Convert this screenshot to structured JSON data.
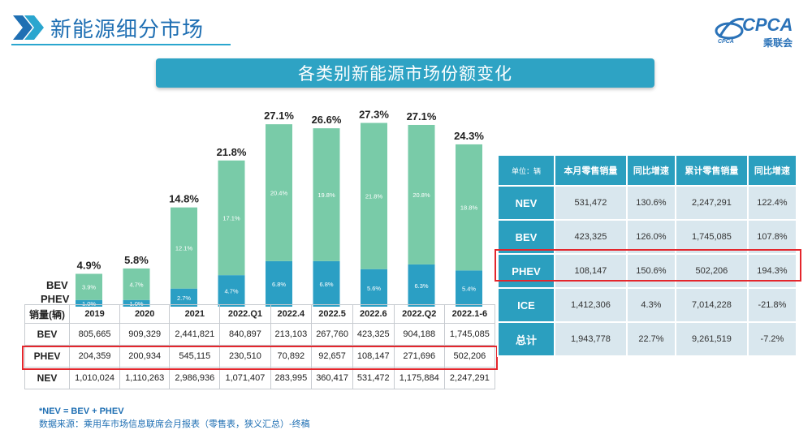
{
  "header": {
    "title": "新能源细分市场"
  },
  "logo": {
    "main": "CPCA",
    "sub": "乘联会",
    "small": "CPCA"
  },
  "banner": {
    "title": "各类别新能源市场份额变化"
  },
  "chart_data": {
    "type": "bar",
    "stacked": true,
    "categories": [
      "2019",
      "2020",
      "2021",
      "2022.Q1",
      "2022.4",
      "2022.5",
      "2022.6",
      "2022.Q2",
      "2022.1-6"
    ],
    "series": [
      {
        "name": "PHEV",
        "values": [
          1.0,
          1.0,
          2.7,
          4.7,
          6.8,
          6.8,
          5.6,
          6.3,
          5.4
        ],
        "labels": [
          "1.0%",
          "1.0%",
          "2.7%",
          "4.7%",
          "6.8%",
          "6.8%",
          "5.6%",
          "6.3%",
          "5.4%"
        ],
        "color": "#2b9fc4"
      },
      {
        "name": "BEV",
        "values": [
          3.9,
          4.7,
          12.1,
          17.1,
          20.4,
          19.8,
          21.8,
          20.8,
          18.8
        ],
        "labels": [
          "3.9%",
          "4.7%",
          "12.1%",
          "17.1%",
          "20.4%",
          "19.8%",
          "21.8%",
          "20.8%",
          "18.8%"
        ],
        "color": "#79cba8"
      }
    ],
    "totals": [
      4.9,
      5.8,
      14.8,
      21.8,
      27.1,
      26.6,
      27.3,
      27.1,
      24.3
    ],
    "total_labels": [
      "4.9%",
      "5.8%",
      "14.8%",
      "21.8%",
      "27.1%",
      "26.6%",
      "27.3%",
      "27.1%",
      "24.3%"
    ],
    "legend": [
      "BEV",
      "PHEV"
    ],
    "ylim": [
      0,
      30
    ]
  },
  "sales_table": {
    "header": [
      "销量(辆)",
      "2019",
      "2020",
      "2021",
      "2022.Q1",
      "2022.4",
      "2022.5",
      "2022.6",
      "2022.Q2",
      "2022.1-6"
    ],
    "rows": [
      [
        "BEV",
        "805,665",
        "909,329",
        "2,441,821",
        "840,897",
        "213,103",
        "267,760",
        "423,325",
        "904,188",
        "1,745,085"
      ],
      [
        "PHEV",
        "204,359",
        "200,934",
        "545,115",
        "230,510",
        "70,892",
        "92,657",
        "108,147",
        "271,696",
        "502,206"
      ],
      [
        "NEV",
        "1,010,024",
        "1,110,263",
        "2,986,936",
        "1,071,407",
        "283,995",
        "360,417",
        "531,472",
        "1,175,884",
        "2,247,291"
      ]
    ]
  },
  "summary_table": {
    "header": [
      "单位：辆",
      "本月零售销量",
      "同比增速",
      "累计零售销量",
      "同比增速"
    ],
    "rows": [
      [
        "NEV",
        "531,472",
        "130.6%",
        "2,247,291",
        "122.4%"
      ],
      [
        "BEV",
        "423,325",
        "126.0%",
        "1,745,085",
        "107.8%"
      ],
      [
        "PHEV",
        "108,147",
        "150.6%",
        "502,206",
        "194.3%"
      ],
      [
        "ICE",
        "1,412,306",
        "4.3%",
        "7,014,228",
        "-21.8%"
      ],
      [
        "总计",
        "1,943,778",
        "22.7%",
        "9,261,519",
        "-7.2%"
      ]
    ]
  },
  "footnote": {
    "line1": "*NEV = BEV + PHEV",
    "line2": "数据来源：乘用车市场信息联席会月报表（零售表，狭义汇总）-终稿"
  },
  "colors": {
    "accent": "#2ea3c4",
    "title": "#1f6fb3",
    "bev": "#79cba8",
    "phev": "#2b9fc4",
    "highlight": "#e4262c"
  }
}
